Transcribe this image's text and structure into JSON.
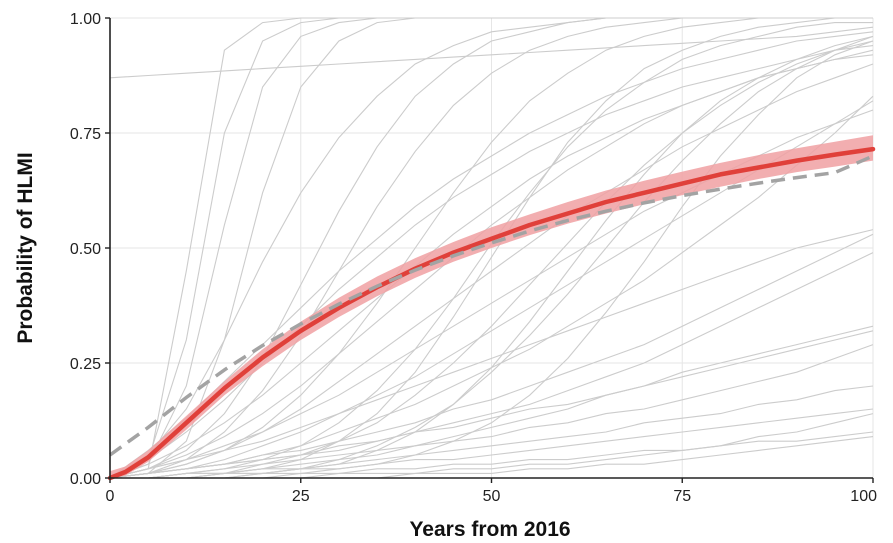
{
  "chart_data": {
    "type": "line",
    "xlabel": "Years from 2016",
    "ylabel": "Probability of HLMI",
    "xlim": [
      0,
      100
    ],
    "ylim": [
      0,
      1
    ],
    "x_ticks": [
      0,
      25,
      50,
      75,
      100
    ],
    "x_tick_labels": [
      "0",
      "25",
      "50",
      "75",
      "100"
    ],
    "y_ticks": [
      0,
      0.25,
      0.5,
      0.75,
      1.0
    ],
    "y_tick_labels": [
      "0.00",
      "0.25",
      "0.50",
      "0.75",
      "1.00"
    ],
    "grid": true,
    "colors": {
      "aggregate": "#e0403a",
      "band": "#f0a0a2",
      "dashed_fit": "#a3a3a3",
      "individual": "#cccccc",
      "grid": "#e6e6e6",
      "axis": "#222222"
    },
    "aggregate_forecast": {
      "style": "solid",
      "x": [
        0,
        2,
        5,
        10,
        15,
        20,
        25,
        30,
        35,
        40,
        45,
        50,
        55,
        60,
        65,
        70,
        75,
        80,
        85,
        90,
        95,
        100
      ],
      "y": [
        0.0,
        0.013,
        0.045,
        0.12,
        0.195,
        0.262,
        0.32,
        0.37,
        0.415,
        0.455,
        0.49,
        0.52,
        0.55,
        0.575,
        0.6,
        0.62,
        0.64,
        0.66,
        0.675,
        0.69,
        0.703,
        0.715
      ],
      "band_lower": [
        0.0,
        0.005,
        0.035,
        0.105,
        0.18,
        0.243,
        0.3,
        0.35,
        0.395,
        0.435,
        0.47,
        0.5,
        0.528,
        0.553,
        0.575,
        0.595,
        0.615,
        0.633,
        0.65,
        0.665,
        0.677,
        0.69
      ],
      "band_upper": [
        0.015,
        0.025,
        0.06,
        0.135,
        0.21,
        0.28,
        0.34,
        0.392,
        0.438,
        0.478,
        0.513,
        0.545,
        0.573,
        0.6,
        0.625,
        0.646,
        0.666,
        0.685,
        0.702,
        0.717,
        0.731,
        0.745
      ]
    },
    "dashed_fit": {
      "style": "dashed",
      "x": [
        0,
        5,
        10,
        15,
        20,
        25,
        30,
        35,
        40,
        45,
        50,
        55,
        60,
        65,
        70,
        75,
        80,
        85,
        90,
        95,
        100
      ],
      "y": [
        0.05,
        0.11,
        0.175,
        0.235,
        0.288,
        0.335,
        0.378,
        0.417,
        0.452,
        0.483,
        0.511,
        0.537,
        0.56,
        0.58,
        0.598,
        0.614,
        0.628,
        0.641,
        0.653,
        0.664,
        0.7
      ]
    },
    "individual_forecasts": {
      "style": "thin",
      "x": [
        0,
        5,
        10,
        15,
        20,
        25,
        30,
        35,
        40,
        45,
        50,
        55,
        60,
        65,
        70,
        75,
        80,
        85,
        90,
        95,
        100
      ],
      "series": [
        {
          "y": [
            0.0,
            0.02,
            0.45,
            0.93,
            0.99,
            1.0,
            1.0,
            1.0,
            1.0,
            1.0,
            1.0,
            1.0,
            1.0,
            1.0,
            1.0,
            1.0,
            1.0,
            1.0,
            1.0,
            1.0,
            1.0
          ]
        },
        {
          "y": [
            0.0,
            0.04,
            0.3,
            0.75,
            0.95,
            0.99,
            1.0,
            1.0,
            1.0,
            1.0,
            1.0,
            1.0,
            1.0,
            1.0,
            1.0,
            1.0,
            1.0,
            1.0,
            1.0,
            1.0,
            1.0
          ]
        },
        {
          "y": [
            0.0,
            0.03,
            0.2,
            0.55,
            0.85,
            0.96,
            0.99,
            1.0,
            1.0,
            1.0,
            1.0,
            1.0,
            1.0,
            1.0,
            1.0,
            1.0,
            1.0,
            1.0,
            1.0,
            1.0,
            1.0
          ]
        },
        {
          "y": [
            0.0,
            0.01,
            0.08,
            0.3,
            0.62,
            0.85,
            0.95,
            0.99,
            1.0,
            1.0,
            1.0,
            1.0,
            1.0,
            1.0,
            1.0,
            1.0,
            1.0,
            1.0,
            1.0,
            1.0,
            1.0
          ]
        },
        {
          "y": [
            0.87,
            0.875,
            0.88,
            0.885,
            0.89,
            0.895,
            0.9,
            0.905,
            0.91,
            0.915,
            0.92,
            0.925,
            0.93,
            0.935,
            0.94,
            0.945,
            0.95,
            0.955,
            0.96,
            0.97,
            0.98
          ]
        },
        {
          "y": [
            0.0,
            0.05,
            0.15,
            0.3,
            0.47,
            0.62,
            0.74,
            0.83,
            0.9,
            0.94,
            0.97,
            0.98,
            0.99,
            1.0,
            1.0,
            1.0,
            1.0,
            1.0,
            1.0,
            1.0,
            1.0
          ]
        },
        {
          "y": [
            0.0,
            0.02,
            0.06,
            0.14,
            0.26,
            0.42,
            0.58,
            0.72,
            0.83,
            0.9,
            0.95,
            0.97,
            0.99,
            1.0,
            1.0,
            1.0,
            1.0,
            1.0,
            1.0,
            1.0,
            1.0
          ]
        },
        {
          "y": [
            0.0,
            0.01,
            0.04,
            0.1,
            0.19,
            0.31,
            0.45,
            0.59,
            0.71,
            0.81,
            0.88,
            0.93,
            0.96,
            0.98,
            0.99,
            1.0,
            1.0,
            1.0,
            1.0,
            1.0,
            1.0
          ]
        },
        {
          "y": [
            0.0,
            0.06,
            0.13,
            0.21,
            0.29,
            0.37,
            0.45,
            0.52,
            0.59,
            0.65,
            0.7,
            0.75,
            0.79,
            0.83,
            0.86,
            0.89,
            0.91,
            0.93,
            0.95,
            0.96,
            0.97
          ]
        },
        {
          "y": [
            0.0,
            0.01,
            0.03,
            0.06,
            0.11,
            0.18,
            0.27,
            0.38,
            0.5,
            0.62,
            0.73,
            0.82,
            0.88,
            0.93,
            0.96,
            0.98,
            0.99,
            1.0,
            1.0,
            1.0,
            1.0
          ]
        },
        {
          "y": [
            0.0,
            0.03,
            0.07,
            0.12,
            0.18,
            0.25,
            0.32,
            0.39,
            0.46,
            0.53,
            0.59,
            0.65,
            0.7,
            0.74,
            0.78,
            0.81,
            0.84,
            0.87,
            0.89,
            0.91,
            0.93
          ]
        },
        {
          "y": [
            0.0,
            0.0,
            0.01,
            0.02,
            0.04,
            0.07,
            0.12,
            0.19,
            0.28,
            0.39,
            0.51,
            0.62,
            0.72,
            0.8,
            0.86,
            0.91,
            0.94,
            0.96,
            0.98,
            0.99,
            0.99
          ]
        },
        {
          "y": [
            0.0,
            0.04,
            0.1,
            0.17,
            0.25,
            0.33,
            0.41,
            0.48,
            0.55,
            0.61,
            0.66,
            0.71,
            0.75,
            0.79,
            0.82,
            0.85,
            0.87,
            0.89,
            0.91,
            0.93,
            0.94
          ]
        },
        {
          "y": [
            0.0,
            0.02,
            0.05,
            0.09,
            0.14,
            0.2,
            0.27,
            0.34,
            0.41,
            0.48,
            0.55,
            0.61,
            0.67,
            0.72,
            0.77,
            0.81,
            0.84,
            0.87,
            0.89,
            0.91,
            0.92
          ]
        },
        {
          "y": [
            0.0,
            0.0,
            0.0,
            0.01,
            0.02,
            0.04,
            0.08,
            0.14,
            0.23,
            0.35,
            0.48,
            0.61,
            0.73,
            0.82,
            0.89,
            0.93,
            0.96,
            0.98,
            0.99,
            1.0,
            1.0
          ]
        },
        {
          "y": [
            0.0,
            0.01,
            0.03,
            0.06,
            0.1,
            0.15,
            0.21,
            0.27,
            0.33,
            0.39,
            0.45,
            0.51,
            0.57,
            0.62,
            0.67,
            0.72,
            0.76,
            0.8,
            0.84,
            0.87,
            0.9
          ]
        },
        {
          "y": [
            0.0,
            0.02,
            0.04,
            0.07,
            0.1,
            0.14,
            0.18,
            0.23,
            0.28,
            0.33,
            0.38,
            0.43,
            0.48,
            0.53,
            0.58,
            0.62,
            0.66,
            0.7,
            0.74,
            0.77,
            0.8
          ]
        },
        {
          "y": [
            0.0,
            0.0,
            0.01,
            0.01,
            0.03,
            0.05,
            0.08,
            0.12,
            0.18,
            0.25,
            0.33,
            0.42,
            0.51,
            0.6,
            0.68,
            0.75,
            0.81,
            0.86,
            0.9,
            0.93,
            0.95
          ]
        },
        {
          "y": [
            0.0,
            0.01,
            0.02,
            0.04,
            0.07,
            0.1,
            0.14,
            0.18,
            0.22,
            0.27,
            0.32,
            0.37,
            0.42,
            0.47,
            0.52,
            0.57,
            0.62,
            0.67,
            0.72,
            0.77,
            0.82
          ]
        },
        {
          "y": [
            0.0,
            0.0,
            0.0,
            0.0,
            0.01,
            0.02,
            0.03,
            0.06,
            0.1,
            0.16,
            0.24,
            0.34,
            0.45,
            0.56,
            0.66,
            0.75,
            0.82,
            0.87,
            0.91,
            0.94,
            0.96
          ]
        },
        {
          "y": [
            0.0,
            0.01,
            0.02,
            0.03,
            0.05,
            0.07,
            0.1,
            0.13,
            0.16,
            0.2,
            0.24,
            0.28,
            0.33,
            0.38,
            0.43,
            0.49,
            0.55,
            0.61,
            0.68,
            0.75,
            0.83
          ]
        },
        {
          "y": [
            0.0,
            0.0,
            0.0,
            0.01,
            0.01,
            0.02,
            0.04,
            0.07,
            0.11,
            0.16,
            0.23,
            0.31,
            0.4,
            0.5,
            0.6,
            0.69,
            0.77,
            0.84,
            0.89,
            0.93,
            0.96
          ]
        },
        {
          "y": [
            0.0,
            0.02,
            0.04,
            0.06,
            0.08,
            0.11,
            0.14,
            0.17,
            0.2,
            0.23,
            0.26,
            0.29,
            0.32,
            0.35,
            0.38,
            0.41,
            0.44,
            0.47,
            0.5,
            0.52,
            0.54
          ]
        },
        {
          "y": [
            0.0,
            0.01,
            0.02,
            0.03,
            0.05,
            0.06,
            0.08,
            0.1,
            0.12,
            0.15,
            0.17,
            0.2,
            0.23,
            0.26,
            0.29,
            0.33,
            0.37,
            0.41,
            0.45,
            0.49,
            0.53
          ]
        },
        {
          "y": [
            0.0,
            0.0,
            0.0,
            0.0,
            0.0,
            0.01,
            0.02,
            0.03,
            0.05,
            0.08,
            0.12,
            0.18,
            0.26,
            0.36,
            0.47,
            0.59,
            0.7,
            0.79,
            0.87,
            0.92,
            0.95
          ]
        },
        {
          "y": [
            0.0,
            0.01,
            0.02,
            0.03,
            0.04,
            0.05,
            0.06,
            0.08,
            0.1,
            0.12,
            0.14,
            0.16,
            0.19,
            0.22,
            0.25,
            0.29,
            0.33,
            0.37,
            0.41,
            0.45,
            0.49
          ]
        },
        {
          "y": [
            0.0,
            0.01,
            0.02,
            0.03,
            0.04,
            0.05,
            0.07,
            0.08,
            0.1,
            0.11,
            0.13,
            0.15,
            0.16,
            0.18,
            0.2,
            0.22,
            0.24,
            0.26,
            0.28,
            0.3,
            0.32
          ]
        },
        {
          "y": [
            0.0,
            0.0,
            0.01,
            0.01,
            0.02,
            0.03,
            0.04,
            0.05,
            0.07,
            0.09,
            0.11,
            0.13,
            0.15,
            0.18,
            0.2,
            0.23,
            0.25,
            0.27,
            0.29,
            0.31,
            0.33
          ]
        },
        {
          "y": [
            0.0,
            0.0,
            0.01,
            0.02,
            0.03,
            0.04,
            0.05,
            0.06,
            0.07,
            0.08,
            0.09,
            0.11,
            0.12,
            0.14,
            0.15,
            0.17,
            0.19,
            0.21,
            0.23,
            0.26,
            0.29
          ]
        },
        {
          "y": [
            0.0,
            0.0,
            0.01,
            0.01,
            0.02,
            0.02,
            0.03,
            0.04,
            0.05,
            0.06,
            0.07,
            0.08,
            0.09,
            0.1,
            0.12,
            0.13,
            0.14,
            0.16,
            0.17,
            0.19,
            0.2
          ]
        },
        {
          "y": [
            0.0,
            0.0,
            0.0,
            0.01,
            0.01,
            0.02,
            0.02,
            0.03,
            0.04,
            0.04,
            0.05,
            0.06,
            0.07,
            0.08,
            0.09,
            0.1,
            0.11,
            0.12,
            0.13,
            0.14,
            0.15
          ]
        },
        {
          "y": [
            0.0,
            0.0,
            0.0,
            0.0,
            0.01,
            0.01,
            0.01,
            0.02,
            0.02,
            0.03,
            0.03,
            0.04,
            0.04,
            0.05,
            0.06,
            0.06,
            0.07,
            0.08,
            0.08,
            0.09,
            0.1
          ]
        },
        {
          "y": [
            0.0,
            0.0,
            0.0,
            0.0,
            0.0,
            0.0,
            0.01,
            0.01,
            0.01,
            0.02,
            0.02,
            0.03,
            0.03,
            0.04,
            0.05,
            0.06,
            0.07,
            0.09,
            0.1,
            0.12,
            0.14
          ]
        },
        {
          "y": [
            0.0,
            0.0,
            0.0,
            0.0,
            0.0,
            0.0,
            0.0,
            0.0,
            0.01,
            0.01,
            0.01,
            0.02,
            0.02,
            0.03,
            0.03,
            0.04,
            0.05,
            0.06,
            0.07,
            0.08,
            0.09
          ]
        }
      ]
    }
  }
}
